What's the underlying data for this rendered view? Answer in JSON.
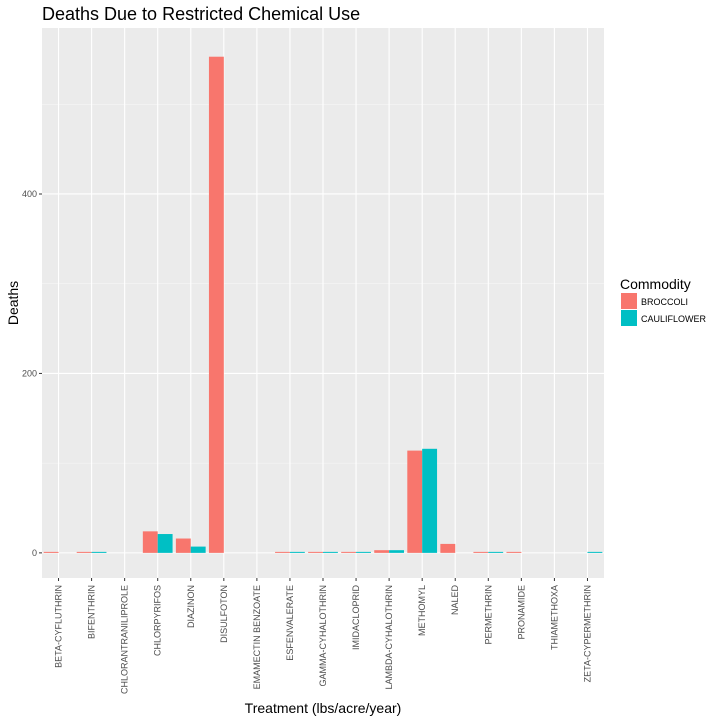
{
  "chart_data": {
    "type": "bar",
    "title": "Deaths Due to Restricted Chemical Use",
    "xlabel": "Treatment (lbs/acre/year)",
    "ylabel": "Deaths",
    "ylim": [
      -28,
      585
    ],
    "yticks": [
      0,
      200,
      400
    ],
    "grid": true,
    "legend_position": "right",
    "legend_title": "Commodity",
    "categories": [
      "BETA-CYFLUTHRIN",
      "BIFENTHRIN",
      "CHLORANTRANILIPROLE",
      "CHLORPYRIFOS",
      "DIAZINON",
      "DISULFOTON",
      "EMAMECTIN BENZOATE",
      "ESFENVALERATE",
      "GAMMA-CYHALOTHRIN",
      "IMIDACLOPRID",
      "LAMBDA-CYHALOTHRIN",
      "METHOMYL",
      "NALED",
      "PERMETHRIN",
      "PRONAMIDE",
      "THIAMETHOXA",
      "ZETA-CYPERMETHRIN"
    ],
    "series": [
      {
        "name": "BROCCOLI",
        "color": "#F8766D",
        "values": [
          1,
          1,
          0,
          24,
          16,
          553,
          0,
          1,
          1,
          1,
          3,
          114,
          10,
          1,
          1,
          0,
          0
        ]
      },
      {
        "name": "CAULIFLOWER",
        "color": "#00BFC4",
        "values": [
          0,
          1,
          0,
          21,
          7,
          0,
          0,
          1,
          1,
          1,
          3,
          116,
          0,
          1,
          0,
          0,
          1
        ]
      }
    ],
    "series_present": [
      [
        true,
        true,
        false,
        true,
        true,
        true,
        false,
        true,
        true,
        true,
        true,
        true,
        true,
        true,
        true,
        false,
        false
      ],
      [
        false,
        true,
        false,
        true,
        true,
        false,
        false,
        true,
        true,
        true,
        true,
        true,
        false,
        true,
        false,
        false,
        true
      ]
    ]
  }
}
